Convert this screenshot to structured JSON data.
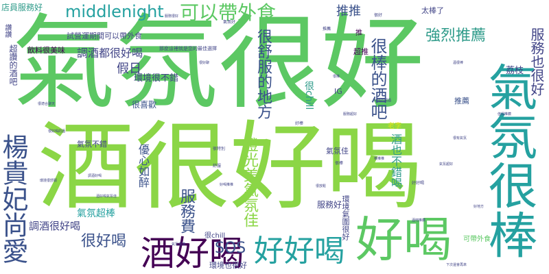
{
  "colors": {
    "background": "#ffffff",
    "lime": "#8bd646",
    "green": "#5cc863",
    "teal": "#25a1a0",
    "blue": "#3b528b",
    "indigo": "#414487",
    "purple": "#440154",
    "yellow": "#dde318",
    "sea": "#2f9b8a"
  },
  "words": [
    {
      "text": "氣氛很好",
      "color": "green",
      "weight": 100
    },
    {
      "text": "酒很好喝",
      "color": "lime",
      "weight": 92
    },
    {
      "text": "氣氛很棒",
      "color": "teal",
      "weight": 70
    },
    {
      "text": "好喝",
      "color": "green",
      "weight": 55
    },
    {
      "text": "酒好喝",
      "color": "purple",
      "weight": 50
    },
    {
      "text": "好好喝",
      "color": "teal",
      "weight": 45
    },
    {
      "text": "可以帶外食",
      "color": "green",
      "weight": 30
    },
    {
      "text": "middlenight",
      "color": "teal",
      "weight": 28
    },
    {
      "text": "楊貴妃尚愛",
      "color": "blue",
      "weight": 35
    },
    {
      "text": "很棒的酒吧",
      "color": "blue",
      "weight": 26
    },
    {
      "text": "燈光美氣氛佳",
      "color": "lime",
      "weight": 24
    },
    {
      "text": "很舒服的地方",
      "color": "blue",
      "weight": 24
    },
    {
      "text": "SOS",
      "color": "blue",
      "weight": 24
    },
    {
      "text": "服務費",
      "color": "blue",
      "weight": 22
    },
    {
      "text": "很好喝",
      "color": "blue",
      "weight": 22
    },
    {
      "text": "強烈推薦",
      "color": "sea",
      "weight": 22
    },
    {
      "text": "推推",
      "color": "blue",
      "weight": 18
    },
    {
      "text": "假日",
      "color": "indigo",
      "weight": 18
    },
    {
      "text": "服務也很好",
      "color": "indigo",
      "weight": 20
    },
    {
      "text": "調酒都很好喝",
      "color": "indigo",
      "weight": 16
    },
    {
      "text": "調酒很好喝",
      "color": "indigo",
      "weight": 15
    },
    {
      "text": "酒也不錯喝",
      "color": "sea",
      "weight": 16
    },
    {
      "text": "很chill",
      "color": "sea",
      "weight": 14
    },
    {
      "text": "優心如醉",
      "color": "blue",
      "weight": 16
    },
    {
      "text": "氣氛超棒",
      "color": "teal",
      "weight": 14
    },
    {
      "text": "荔枝",
      "color": "indigo",
      "weight": 13
    },
    {
      "text": "環境很不錯",
      "color": "indigo",
      "weight": 13
    },
    {
      "text": "很喜歡",
      "color": "blue",
      "weight": 12
    },
    {
      "text": "店員服務好",
      "color": "sea",
      "weight": 12
    },
    {
      "text": "超讚的酒吧",
      "color": "indigo",
      "weight": 12
    },
    {
      "text": "飲料很美味",
      "color": "purple",
      "weight": 11
    },
    {
      "text": "試營運期間可以帶外食",
      "color": "indigo",
      "weight": 11
    },
    {
      "text": "太棒了",
      "color": "indigo",
      "weight": 11
    },
    {
      "text": "推薦",
      "color": "blue",
      "weight": 11
    },
    {
      "text": "氣氛不錯",
      "color": "indigo",
      "weight": 11
    },
    {
      "text": "服務好",
      "color": "indigo",
      "weight": 12
    },
    {
      "text": "超推",
      "color": "purple",
      "weight": 11
    },
    {
      "text": "推",
      "color": "purple",
      "weight": 10
    },
    {
      "text": "IG",
      "color": "indigo",
      "weight": 11
    },
    {
      "text": "環境氣圍很好",
      "color": "indigo",
      "weight": 11
    },
    {
      "text": "環境也很好",
      "color": "indigo",
      "weight": 11
    },
    {
      "text": "很chill",
      "color": "indigo",
      "weight": 10
    },
    {
      "text": "可帶外食",
      "color": "green",
      "weight": 10
    },
    {
      "text": "氣氛佳",
      "color": "indigo",
      "weight": 11
    },
    {
      "text": "讚讚",
      "color": "indigo",
      "weight": 10
    },
    {
      "text": "老李",
      "color": "yellow",
      "weight": 10
    },
    {
      "text": "很棒",
      "color": "indigo",
      "weight": 6
    },
    {
      "text": "舒服",
      "color": "indigo",
      "weight": 6
    },
    {
      "text": "很好",
      "color": "indigo",
      "weight": 6
    },
    {
      "text": "推薦",
      "color": "indigo",
      "weight": 6
    },
    {
      "text": "氣氛好",
      "color": "indigo",
      "weight": 6
    },
    {
      "text": "好棒",
      "color": "indigo",
      "weight": 6
    },
    {
      "text": "很特別",
      "color": "indigo",
      "weight": 6
    },
    {
      "text": "好好喝",
      "color": "indigo",
      "weight": 6
    },
    {
      "text": "那麼這裡就是您的最佳選擇",
      "color": "indigo",
      "weight": 7
    },
    {
      "text": "服務很好",
      "color": "indigo",
      "weight": 5
    },
    {
      "text": "酒很棒",
      "color": "indigo",
      "weight": 5
    },
    {
      "text": "很推",
      "color": "indigo",
      "weight": 5
    },
    {
      "text": "好喝的調酒",
      "color": "indigo",
      "weight": 5
    },
    {
      "text": "值得推薦",
      "color": "indigo",
      "weight": 5
    },
    {
      "text": "很好喝的酒",
      "color": "indigo",
      "weight": 5
    },
    {
      "text": "下次還會再來",
      "color": "indigo",
      "weight": 5
    },
    {
      "text": "環境很舒服",
      "color": "indigo",
      "weight": 5
    },
    {
      "text": "氣氛很讚",
      "color": "indigo",
      "weight": 5
    },
    {
      "text": "酒好喝氣氛佳",
      "color": "indigo",
      "weight": 5
    },
    {
      "text": "好喝推推",
      "color": "indigo",
      "weight": 5
    },
    {
      "text": "服務超好",
      "color": "indigo",
      "weight": 5
    },
    {
      "text": "很有氣氛",
      "color": "indigo",
      "weight": 5
    },
    {
      "text": "很放鬆",
      "color": "indigo",
      "weight": 5
    },
    {
      "text": "酒吧推薦",
      "color": "indigo",
      "weight": 5
    },
    {
      "text": "氣氛超好",
      "color": "indigo",
      "weight": 5
    },
    {
      "text": "推推推",
      "color": "indigo",
      "weight": 5
    },
    {
      "text": "很適合聊天",
      "color": "indigo",
      "weight": 5
    },
    {
      "text": "調酒好喝",
      "color": "indigo",
      "weight": 5
    },
    {
      "text": "很好聊",
      "color": "indigo",
      "weight": 5
    },
    {
      "text": "好地方",
      "color": "indigo",
      "weight": 5
    }
  ]
}
